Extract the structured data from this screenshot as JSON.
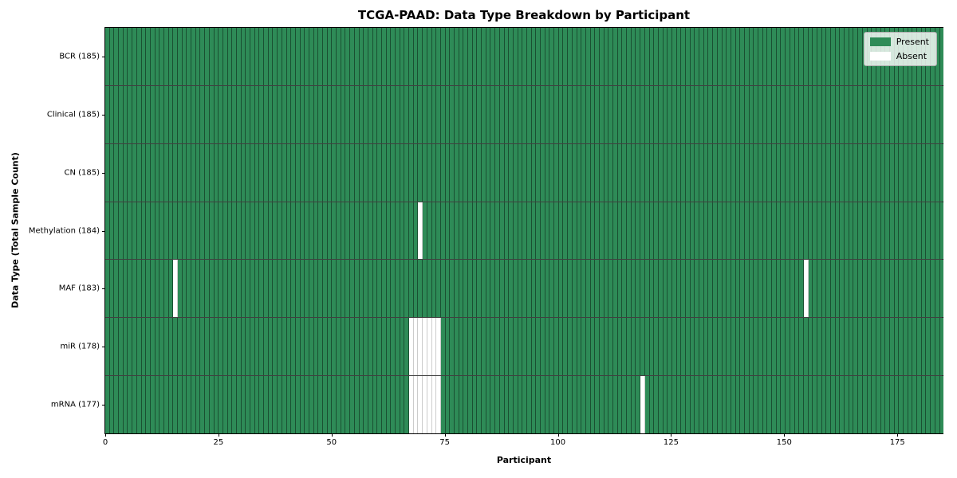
{
  "title": "TCGA-PAAD: Data Type Breakdown by Participant",
  "xlabel": "Participant",
  "ylabel": "Data Type (Total Sample Count)",
  "legend": {
    "present_label": "Present",
    "absent_label": "Absent"
  },
  "colors": {
    "present": "#2e8b57",
    "absent": "#ffffff"
  },
  "chart_data": {
    "type": "heatmap",
    "title": "TCGA-PAAD: Data Type Breakdown by Participant",
    "xlabel": "Participant",
    "ylabel": "Data Type (Total Sample Count)",
    "x_range": [
      0,
      185
    ],
    "n_participants": 185,
    "x_ticks": [
      0,
      25,
      50,
      75,
      100,
      125,
      150,
      175
    ],
    "legend_position": "upper right",
    "grid": "cell-edges",
    "value_legend": {
      "present": 1,
      "absent": 0
    },
    "rows": [
      {
        "label": "BCR (185)",
        "data_type": "BCR",
        "total": 185,
        "absent_participants": []
      },
      {
        "label": "Clinical (185)",
        "data_type": "Clinical",
        "total": 185,
        "absent_participants": []
      },
      {
        "label": "CN (185)",
        "data_type": "CN",
        "total": 185,
        "absent_participants": []
      },
      {
        "label": "Methylation (184)",
        "data_type": "Methylation",
        "total": 184,
        "absent_participants": [
          69
        ]
      },
      {
        "label": "MAF (183)",
        "data_type": "MAF",
        "total": 183,
        "absent_participants": [
          15,
          154
        ]
      },
      {
        "label": "miR (178)",
        "data_type": "miR",
        "total": 178,
        "absent_participants": [
          67,
          68,
          69,
          70,
          71,
          72,
          73
        ]
      },
      {
        "label": "mRNA (177)",
        "data_type": "mRNA",
        "total": 177,
        "absent_participants": [
          67,
          68,
          69,
          70,
          71,
          72,
          73,
          118
        ]
      }
    ]
  }
}
